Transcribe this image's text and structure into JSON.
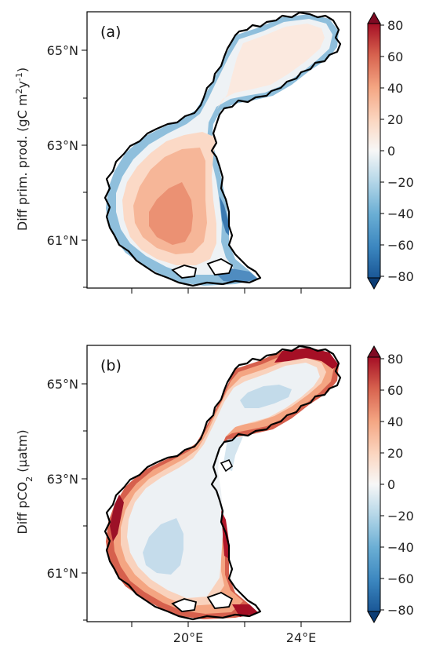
{
  "figure": {
    "panels": [
      {
        "label": "(a)",
        "ylabel_main": "Diff prim. prod. (gC m",
        "ylabel_sup1": "2",
        "ylabel_mid": "y",
        "ylabel_sup2": "-1",
        "ylabel_end": ")",
        "lat_ticks": [
          "65°N",
          "63°N",
          "61°N"
        ],
        "lon_ticks": [
          "",
          "",
          ""
        ],
        "colorbar_ticks": [
          "80",
          "60",
          "40",
          "20",
          "0",
          "−20",
          "−40",
          "−60",
          "−80"
        ]
      },
      {
        "label": "(b)",
        "ylabel_main": "Diff pCO",
        "ylabel_sub": "2",
        "ylabel_end": " (µatm)",
        "lat_ticks": [
          "65°N",
          "63°N",
          "61°N"
        ],
        "lon_ticks": [
          "20°E",
          "24°E"
        ],
        "colorbar_ticks": [
          "80",
          "60",
          "40",
          "20",
          "0",
          "−20",
          "−40",
          "−60",
          "−80"
        ]
      }
    ],
    "colormap": [
      "#053061",
      "#1a5796",
      "#2f79b5",
      "#4393c3",
      "#6aaed4",
      "#92c5de",
      "#b5d7e8",
      "#d1e5f0",
      "#e4eef5",
      "#f7f7f7",
      "#fbe9df",
      "#fddbc7",
      "#f7bba0",
      "#f4a582",
      "#e07b62",
      "#d6604d",
      "#c43c3c",
      "#b2182b",
      "#8a0b25",
      "#67001f"
    ],
    "icons": [
      "colorbar-min-arrow",
      "colorbar-max-arrow"
    ]
  }
}
